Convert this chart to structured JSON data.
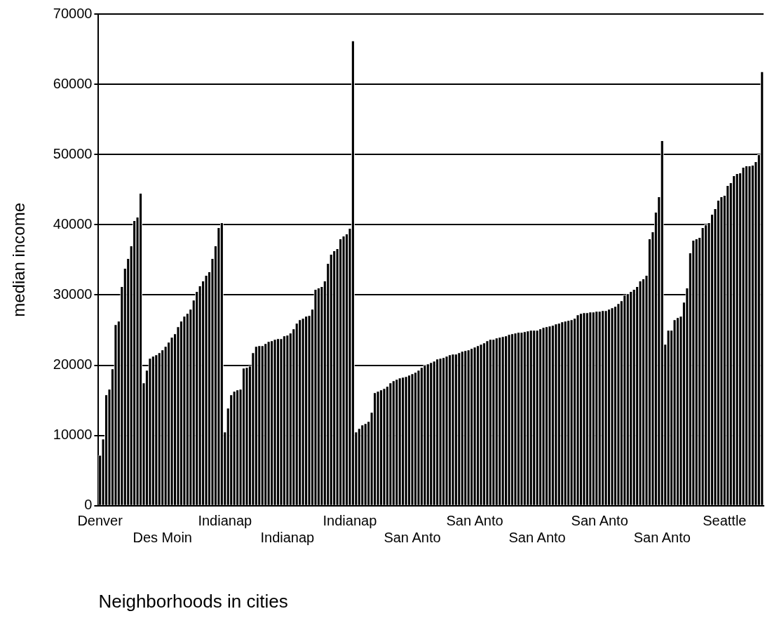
{
  "chart_data": {
    "type": "bar",
    "xlabel": "Neighborhoods in cities",
    "ylabel": "median income",
    "color": "#000000",
    "grid": "y",
    "ylim": [
      0,
      70000
    ],
    "yticks": [
      0,
      10000,
      20000,
      30000,
      40000,
      50000,
      60000,
      70000
    ],
    "categories": [
      "Denver",
      null,
      null,
      null,
      null,
      null,
      null,
      null,
      null,
      null,
      null,
      null,
      null,
      null,
      null,
      null,
      null,
      null,
      null,
      null,
      "Des Moin",
      null,
      null,
      null,
      null,
      null,
      null,
      null,
      null,
      null,
      null,
      null,
      null,
      null,
      null,
      null,
      null,
      null,
      null,
      null,
      "Indianap",
      null,
      null,
      null,
      null,
      null,
      null,
      null,
      null,
      null,
      null,
      null,
      null,
      null,
      null,
      null,
      null,
      null,
      null,
      null,
      "Indianap",
      null,
      null,
      null,
      null,
      null,
      null,
      null,
      null,
      null,
      null,
      null,
      null,
      null,
      null,
      null,
      null,
      null,
      null,
      null,
      "Indianap",
      null,
      null,
      null,
      null,
      null,
      null,
      null,
      null,
      null,
      null,
      null,
      null,
      null,
      null,
      null,
      null,
      null,
      null,
      null,
      "San Anto",
      null,
      null,
      null,
      null,
      null,
      null,
      null,
      null,
      null,
      null,
      null,
      null,
      null,
      null,
      null,
      null,
      null,
      null,
      null,
      "San Anto",
      null,
      null,
      null,
      null,
      null,
      null,
      null,
      null,
      null,
      null,
      null,
      null,
      null,
      null,
      null,
      null,
      null,
      null,
      null,
      "San Anto",
      null,
      null,
      null,
      null,
      null,
      null,
      null,
      null,
      null,
      null,
      null,
      null,
      null,
      null,
      null,
      null,
      null,
      null,
      null,
      "San Anto",
      null,
      null,
      null,
      null,
      null,
      null,
      null,
      null,
      null,
      null,
      null,
      null,
      null,
      null,
      null,
      null,
      null,
      null,
      null,
      "San Anto",
      null,
      null,
      null,
      null,
      null,
      null,
      null,
      null,
      null,
      null,
      null,
      null,
      null,
      null,
      null,
      null,
      null,
      null,
      null,
      "Seattle",
      null,
      null,
      null,
      null,
      null,
      null,
      null,
      null,
      null,
      null,
      null,
      null
    ],
    "values": [
      7200,
      9500,
      15800,
      16600,
      19500,
      25800,
      26300,
      31200,
      33800,
      35200,
      37000,
      40600,
      41100,
      44500,
      17500,
      19300,
      21000,
      21300,
      21500,
      21800,
      22200,
      22700,
      23300,
      24000,
      24500,
      25500,
      26300,
      27000,
      27400,
      28000,
      29300,
      30500,
      31300,
      32000,
      32800,
      33300,
      35200,
      37000,
      39600,
      40300,
      10500,
      13900,
      15800,
      16300,
      16500,
      16600,
      19600,
      19700,
      19900,
      21800,
      22700,
      22800,
      22800,
      23100,
      23400,
      23500,
      23700,
      23800,
      23800,
      24200,
      24300,
      24600,
      25200,
      26000,
      26500,
      26700,
      27000,
      27100,
      28000,
      30800,
      31000,
      31200,
      32000,
      34500,
      35800,
      36300,
      36600,
      38000,
      38400,
      38700,
      39500,
      66200,
      10500,
      11000,
      11500,
      11700,
      12000,
      13300,
      16100,
      16300,
      16500,
      16700,
      17000,
      17500,
      17800,
      18000,
      18200,
      18300,
      18400,
      18600,
      18800,
      19000,
      19300,
      19700,
      20000,
      20200,
      20400,
      20600,
      20900,
      21000,
      21100,
      21300,
      21500,
      21600,
      21600,
      21800,
      22000,
      22100,
      22200,
      22400,
      22600,
      22800,
      23000,
      23200,
      23500,
      23700,
      23700,
      23900,
      24000,
      24100,
      24200,
      24400,
      24500,
      24600,
      24700,
      24700,
      24800,
      24900,
      25000,
      25000,
      25000,
      25200,
      25400,
      25500,
      25600,
      25700,
      25900,
      26000,
      26200,
      26300,
      26400,
      26500,
      26700,
      27200,
      27400,
      27500,
      27500,
      27600,
      27600,
      27700,
      27700,
      27800,
      27800,
      28000,
      28200,
      28400,
      28800,
      29200,
      30000,
      30200,
      30500,
      30800,
      31200,
      32000,
      32300,
      32800,
      38000,
      39000,
      41800,
      44000,
      52000,
      23000,
      25000,
      25000,
      26500,
      26800,
      27000,
      29000,
      31000,
      36000,
      37800,
      38000,
      38200,
      39600,
      40000,
      40300,
      41500,
      42300,
      43500,
      44000,
      44200,
      45600,
      46000,
      47000,
      47300,
      47400,
      48200,
      48400,
      48400,
      48500,
      49000,
      50000,
      61800
    ]
  }
}
